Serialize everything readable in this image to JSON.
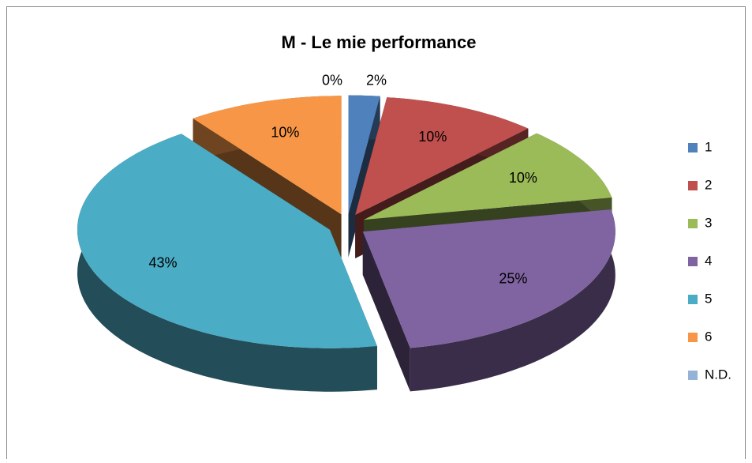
{
  "chart_data": {
    "type": "pie",
    "title": "M - Le mie performance",
    "categories": [
      "1",
      "2",
      "3",
      "4",
      "5",
      "6",
      "N.D."
    ],
    "values": [
      2,
      10,
      10,
      25,
      43,
      10,
      0
    ],
    "value_labels": [
      "2%",
      "10%",
      "10%",
      "25%",
      "43%",
      "10%",
      "0%"
    ],
    "colors": [
      "#4f81bd",
      "#c0504d",
      "#9bbb59",
      "#8064a2",
      "#4bacc6",
      "#f79646",
      "#95b3d7"
    ],
    "legend": "right"
  }
}
